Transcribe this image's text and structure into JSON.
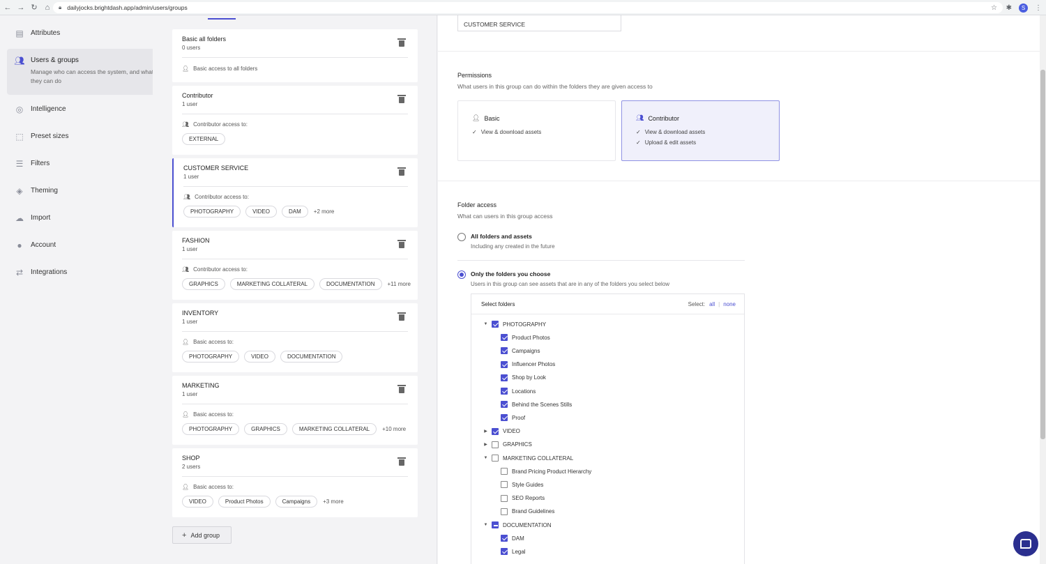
{
  "browser": {
    "url": "dailyjocks.brightdash.app/admin/users/groups",
    "profile_initial": "S"
  },
  "sidebar": {
    "items": [
      {
        "label": "Attributes",
        "icon": "list-icon"
      },
      {
        "label": "Users & groups",
        "icon": "users-icon",
        "desc": "Manage who can access the system, and what they can do"
      },
      {
        "label": "Intelligence",
        "icon": "fingerprint-icon"
      },
      {
        "label": "Preset sizes",
        "icon": "crop-icon"
      },
      {
        "label": "Filters",
        "icon": "sliders-icon"
      },
      {
        "label": "Theming",
        "icon": "paint-bucket-icon"
      },
      {
        "label": "Import",
        "icon": "cloud-upload-icon"
      },
      {
        "label": "Account",
        "icon": "account-icon"
      },
      {
        "label": "Integrations",
        "icon": "arrows-icon"
      }
    ]
  },
  "groups": [
    {
      "name": "Basic all folders",
      "count": "0 users",
      "access": "Basic access to all folders",
      "chips": [],
      "more": ""
    },
    {
      "name": "Contributor",
      "count": "1 user",
      "access": "Contributor access to:",
      "chips": [
        "EXTERNAL"
      ],
      "more": ""
    },
    {
      "name": "CUSTOMER SERVICE",
      "count": "1 user",
      "access": "Contributor access to:",
      "chips": [
        "PHOTOGRAPHY",
        "VIDEO",
        "DAM"
      ],
      "more": "+2 more"
    },
    {
      "name": "FASHION",
      "count": "1 user",
      "access": "Contributor access to:",
      "chips": [
        "GRAPHICS",
        "MARKETING COLLATERAL",
        "DOCUMENTATION"
      ],
      "more": "+11 more"
    },
    {
      "name": "INVENTORY",
      "count": "1 user",
      "access": "Basic access to:",
      "chips": [
        "PHOTOGRAPHY",
        "VIDEO",
        "DOCUMENTATION"
      ],
      "more": ""
    },
    {
      "name": "MARKETING",
      "count": "1 user",
      "access": "Basic access to:",
      "chips": [
        "PHOTOGRAPHY",
        "GRAPHICS",
        "MARKETING COLLATERAL"
      ],
      "more": "+10 more"
    },
    {
      "name": "SHOP",
      "count": "2 users",
      "access": "Basic access to:",
      "chips": [
        "VIDEO",
        "Product Photos",
        "Campaigns"
      ],
      "more": "+3 more"
    }
  ],
  "add_group_label": "Add group",
  "detail": {
    "group_name_value": "CUSTOMER SERVICE",
    "permissions": {
      "title": "Permissions",
      "subtitle": "What users in this group can do within the folders they are given access to",
      "basic": {
        "title": "Basic",
        "lines": [
          "View & download assets"
        ]
      },
      "contributor": {
        "title": "Contributor",
        "lines": [
          "View & download assets",
          "Upload & edit assets"
        ]
      }
    },
    "folder_access": {
      "title": "Folder access",
      "subtitle": "What can users in this group access",
      "opt_all": {
        "title": "All folders and assets",
        "sub": "Including any created in the future"
      },
      "opt_choose": {
        "title": "Only the folders you choose",
        "sub": "Users in this group can see assets that are in any of the folders you select below"
      },
      "select_title": "Select folders",
      "select_label": "Select:",
      "select_all": "all",
      "select_none": "none",
      "tree": [
        {
          "label": "PHOTOGRAPHY",
          "level": 0,
          "caret": "down",
          "state": "on"
        },
        {
          "label": "Product Photos",
          "level": 1,
          "caret": "",
          "state": "on"
        },
        {
          "label": "Campaigns",
          "level": 1,
          "caret": "",
          "state": "on"
        },
        {
          "label": "Influencer Photos",
          "level": 1,
          "caret": "",
          "state": "on"
        },
        {
          "label": "Shop by Look",
          "level": 1,
          "caret": "",
          "state": "on"
        },
        {
          "label": "Locations",
          "level": 1,
          "caret": "",
          "state": "on"
        },
        {
          "label": "Behind the Scenes Stills",
          "level": 1,
          "caret": "",
          "state": "on"
        },
        {
          "label": "Proof",
          "level": 1,
          "caret": "",
          "state": "on"
        },
        {
          "label": "VIDEO",
          "level": 0,
          "caret": "right",
          "state": "on"
        },
        {
          "label": "GRAPHICS",
          "level": 0,
          "caret": "right",
          "state": "off"
        },
        {
          "label": "MARKETING COLLATERAL",
          "level": 0,
          "caret": "down",
          "state": "off"
        },
        {
          "label": "Brand Pricing Product Hierarchy",
          "level": 1,
          "caret": "",
          "state": "off"
        },
        {
          "label": "Style Guides",
          "level": 1,
          "caret": "",
          "state": "off"
        },
        {
          "label": "SEO Reports",
          "level": 1,
          "caret": "",
          "state": "off"
        },
        {
          "label": "Brand Guidelines",
          "level": 1,
          "caret": "",
          "state": "off"
        },
        {
          "label": "DOCUMENTATION",
          "level": 0,
          "caret": "down",
          "state": "mixed"
        },
        {
          "label": "DAM",
          "level": 1,
          "caret": "",
          "state": "on"
        },
        {
          "label": "Legal",
          "level": 1,
          "caret": "",
          "state": "on"
        }
      ]
    }
  },
  "colors": {
    "accent": "#4b4fd1",
    "chat": "#2b2f8f"
  }
}
